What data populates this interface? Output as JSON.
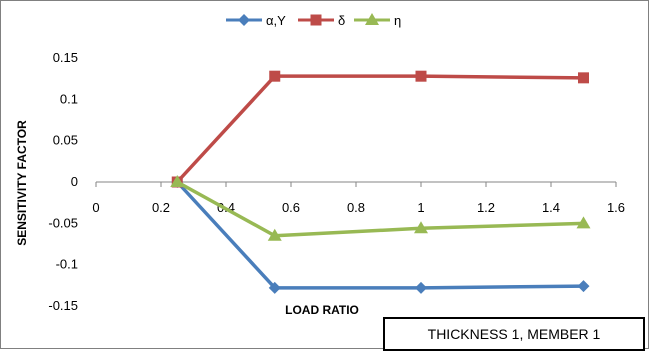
{
  "chart_data": {
    "type": "line",
    "xlabel": "LOAD RATIO",
    "ylabel": "SENSITIVITY  FACTOR",
    "xlim": [
      0,
      1.6
    ],
    "ylim": [
      -0.15,
      0.15
    ],
    "x_ticks": [
      "0",
      "0.2",
      "0.4",
      "0.6",
      "0.8",
      "1",
      "1.2",
      "1.4",
      "1.6"
    ],
    "y_ticks": [
      "0.15",
      "0.1",
      "0.05",
      "0",
      "-0.05",
      "-0.1",
      "-0.15"
    ],
    "grid": false,
    "legend_position": "top",
    "annotation": "THICKNESS 1, MEMBER 1",
    "series": [
      {
        "name": "α,Υ",
        "color": "#4a7ebb",
        "marker": "diamond",
        "x": [
          0.25,
          0.55,
          1.0,
          1.5
        ],
        "y": [
          0,
          -0.128,
          -0.128,
          -0.126
        ]
      },
      {
        "name": "δ",
        "color": "#be4b48",
        "marker": "square",
        "x": [
          0.25,
          0.55,
          1.0,
          1.5
        ],
        "y": [
          0,
          0.128,
          0.128,
          0.126
        ]
      },
      {
        "name": "η",
        "color": "#98b954",
        "marker": "triangle",
        "x": [
          0.25,
          0.55,
          1.0,
          1.5
        ],
        "y": [
          0,
          -0.065,
          -0.056,
          -0.05
        ]
      }
    ]
  }
}
